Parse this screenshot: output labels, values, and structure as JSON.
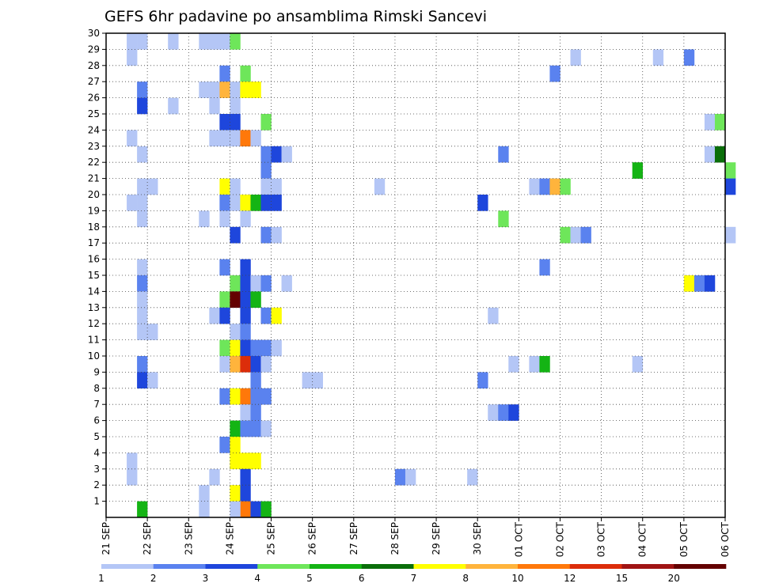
{
  "chart_data": {
    "type": "heatmap",
    "title": "GEFS 6hr padavine po ansamblima Rimski Sancevi",
    "x_tick_labels": [
      "21 SEP",
      "22 SEP",
      "23 SEP",
      "24 SEP",
      "25 SEP",
      "26 SEP",
      "27 SEP",
      "28 SEP",
      "29 SEP",
      "30 SEP",
      "01 OCT",
      "02 OCT",
      "03 OCT",
      "04 OCT",
      "05 OCT",
      "06 OCT"
    ],
    "x_range_days": [
      0,
      15
    ],
    "y_tick_labels": [
      "1",
      "2",
      "3",
      "4",
      "5",
      "6",
      "7",
      "8",
      "9",
      "10",
      "11",
      "12",
      "13",
      "14",
      "15",
      "16",
      "17",
      "18",
      "19",
      "20",
      "21",
      "22",
      "23",
      "24",
      "25",
      "26",
      "27",
      "28",
      "29",
      "30"
    ],
    "y_range": [
      0,
      30
    ],
    "grid": true,
    "colorbar": {
      "placement": "bottom",
      "labels": [
        "1",
        "2",
        "3",
        "4",
        "5",
        "6",
        "7",
        "8",
        "10",
        "12",
        "15",
        "20"
      ],
      "colors": [
        "#b4c6f6",
        "#5a82ef",
        "#1e46dc",
        "#6ee65a",
        "#14b414",
        "#0a6e0a",
        "#ffff00",
        "#ffb43c",
        "#ff780a",
        "#dc2d0a",
        "#a01414",
        "#640000"
      ]
    },
    "cells_note": "each cell: [day_offset_from_21_SEP, ensemble_member, color_class 0-11]",
    "cells": [
      [
        0.5,
        30,
        0
      ],
      [
        0.75,
        30,
        0
      ],
      [
        1.5,
        30,
        0
      ],
      [
        2.25,
        30,
        0
      ],
      [
        2.5,
        30,
        0
      ],
      [
        2.75,
        30,
        0
      ],
      [
        3.0,
        30,
        3
      ],
      [
        0.5,
        29,
        0
      ],
      [
        11.25,
        29,
        0
      ],
      [
        13.25,
        29,
        0
      ],
      [
        14.0,
        29,
        1
      ],
      [
        2.75,
        28,
        1
      ],
      [
        3.25,
        28,
        3
      ],
      [
        10.75,
        28,
        1
      ],
      [
        0.75,
        27,
        1
      ],
      [
        2.25,
        27,
        0
      ],
      [
        2.5,
        27,
        0
      ],
      [
        2.75,
        27,
        7
      ],
      [
        3.0,
        27,
        0
      ],
      [
        3.25,
        27,
        6
      ],
      [
        3.5,
        27,
        6
      ],
      [
        0.75,
        26,
        2
      ],
      [
        1.5,
        26,
        0
      ],
      [
        2.5,
        26,
        0
      ],
      [
        3.0,
        26,
        0
      ],
      [
        2.75,
        25,
        2
      ],
      [
        3.0,
        25,
        2
      ],
      [
        3.75,
        25,
        3
      ],
      [
        14.5,
        25,
        0
      ],
      [
        14.75,
        25,
        3
      ],
      [
        0.5,
        24,
        0
      ],
      [
        2.5,
        24,
        0
      ],
      [
        2.75,
        24,
        0
      ],
      [
        3.0,
        24,
        0
      ],
      [
        3.25,
        24,
        8
      ],
      [
        3.5,
        24,
        0
      ],
      [
        0.75,
        23,
        0
      ],
      [
        3.75,
        23,
        1
      ],
      [
        4.0,
        23,
        2
      ],
      [
        4.25,
        23,
        0
      ],
      [
        9.5,
        23,
        1
      ],
      [
        14.5,
        23,
        0
      ],
      [
        14.75,
        23,
        5
      ],
      [
        3.75,
        22,
        1
      ],
      [
        12.75,
        22,
        4
      ],
      [
        15.0,
        22,
        3
      ],
      [
        0.75,
        21,
        0
      ],
      [
        1.0,
        21,
        0
      ],
      [
        2.75,
        21,
        6
      ],
      [
        3.0,
        21,
        0
      ],
      [
        3.75,
        21,
        0
      ],
      [
        4.0,
        21,
        0
      ],
      [
        6.5,
        21,
        0
      ],
      [
        10.25,
        21,
        0
      ],
      [
        10.5,
        21,
        1
      ],
      [
        10.75,
        21,
        7
      ],
      [
        11.0,
        21,
        3
      ],
      [
        15.0,
        21,
        2
      ],
      [
        0.5,
        20,
        0
      ],
      [
        0.75,
        20,
        0
      ],
      [
        2.75,
        20,
        1
      ],
      [
        3.0,
        20,
        0
      ],
      [
        3.25,
        20,
        6
      ],
      [
        3.5,
        20,
        4
      ],
      [
        3.75,
        20,
        2
      ],
      [
        4.0,
        20,
        2
      ],
      [
        9.0,
        20,
        2
      ],
      [
        0.75,
        19,
        0
      ],
      [
        2.25,
        19,
        0
      ],
      [
        2.75,
        19,
        0
      ],
      [
        3.25,
        19,
        0
      ],
      [
        9.5,
        19,
        3
      ],
      [
        3.0,
        18,
        2
      ],
      [
        3.75,
        18,
        1
      ],
      [
        4.0,
        18,
        0
      ],
      [
        11.0,
        18,
        3
      ],
      [
        11.25,
        18,
        0
      ],
      [
        11.5,
        18,
        1
      ],
      [
        15.0,
        18,
        0
      ],
      [
        0.75,
        16,
        0
      ],
      [
        2.75,
        16,
        1
      ],
      [
        3.25,
        16,
        2
      ],
      [
        10.5,
        16,
        1
      ],
      [
        0.75,
        15,
        1
      ],
      [
        3.0,
        15,
        3
      ],
      [
        3.25,
        15,
        2
      ],
      [
        3.5,
        15,
        0
      ],
      [
        3.75,
        15,
        1
      ],
      [
        4.25,
        15,
        0
      ],
      [
        14.0,
        15,
        6
      ],
      [
        14.25,
        15,
        1
      ],
      [
        14.5,
        15,
        2
      ],
      [
        0.75,
        14,
        0
      ],
      [
        2.75,
        14,
        3
      ],
      [
        3.0,
        14,
        11
      ],
      [
        3.25,
        14,
        2
      ],
      [
        3.5,
        14,
        4
      ],
      [
        0.75,
        13,
        0
      ],
      [
        2.5,
        13,
        0
      ],
      [
        2.75,
        13,
        2
      ],
      [
        3.25,
        13,
        2
      ],
      [
        3.75,
        13,
        1
      ],
      [
        4.0,
        13,
        6
      ],
      [
        9.25,
        13,
        0
      ],
      [
        0.75,
        12,
        0
      ],
      [
        1.0,
        12,
        0
      ],
      [
        3.0,
        12,
        0
      ],
      [
        3.25,
        12,
        1
      ],
      [
        2.75,
        11,
        3
      ],
      [
        3.0,
        11,
        6
      ],
      [
        3.25,
        11,
        2
      ],
      [
        3.5,
        11,
        1
      ],
      [
        3.75,
        11,
        1
      ],
      [
        4.0,
        11,
        0
      ],
      [
        0.75,
        10,
        1
      ],
      [
        2.75,
        10,
        0
      ],
      [
        3.0,
        10,
        7
      ],
      [
        3.25,
        10,
        9
      ],
      [
        3.5,
        10,
        2
      ],
      [
        3.75,
        10,
        0
      ],
      [
        9.75,
        10,
        0
      ],
      [
        10.25,
        10,
        0
      ],
      [
        10.5,
        10,
        4
      ],
      [
        12.75,
        10,
        0
      ],
      [
        0.75,
        9,
        2
      ],
      [
        1.0,
        9,
        0
      ],
      [
        3.5,
        9,
        1
      ],
      [
        4.75,
        9,
        0
      ],
      [
        5.0,
        9,
        0
      ],
      [
        9.0,
        9,
        1
      ],
      [
        2.75,
        8,
        1
      ],
      [
        3.0,
        8,
        6
      ],
      [
        3.25,
        8,
        8
      ],
      [
        3.5,
        8,
        1
      ],
      [
        3.75,
        8,
        1
      ],
      [
        3.25,
        7,
        0
      ],
      [
        3.5,
        7,
        1
      ],
      [
        9.25,
        7,
        0
      ],
      [
        9.5,
        7,
        1
      ],
      [
        9.75,
        7,
        2
      ],
      [
        3.0,
        6,
        4
      ],
      [
        3.25,
        6,
        1
      ],
      [
        3.5,
        6,
        1
      ],
      [
        3.75,
        6,
        0
      ],
      [
        2.75,
        5,
        1
      ],
      [
        3.0,
        5,
        6
      ],
      [
        0.5,
        4,
        0
      ],
      [
        3.0,
        4,
        6
      ],
      [
        3.25,
        4,
        6
      ],
      [
        3.5,
        4,
        6
      ],
      [
        0.5,
        3,
        0
      ],
      [
        2.5,
        3,
        0
      ],
      [
        3.25,
        3,
        2
      ],
      [
        7.0,
        3,
        1
      ],
      [
        7.25,
        3,
        0
      ],
      [
        8.75,
        3,
        0
      ],
      [
        2.25,
        2,
        0
      ],
      [
        3.0,
        2,
        6
      ],
      [
        3.25,
        2,
        2
      ],
      [
        2.25,
        1,
        0
      ],
      [
        0.75,
        1,
        4
      ],
      [
        3.25,
        1,
        8
      ],
      [
        3.5,
        1,
        2
      ],
      [
        3.75,
        1,
        4
      ],
      [
        3.0,
        1,
        0
      ]
    ]
  }
}
